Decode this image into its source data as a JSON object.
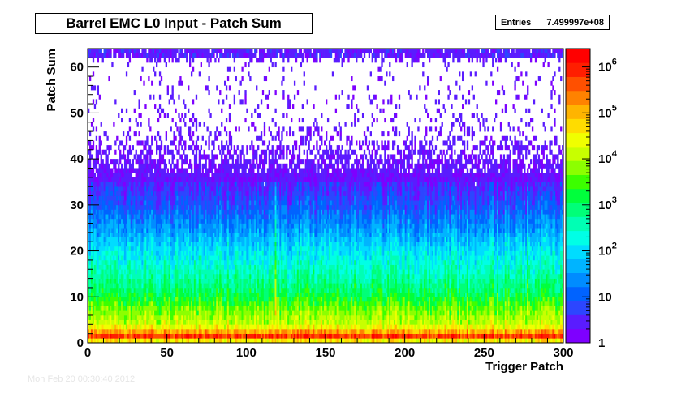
{
  "title": "Barrel EMC L0 Input - Patch Sum",
  "stats": {
    "label": "Entries",
    "value": "7.499997e+08"
  },
  "footer": "Mon Feb 20 00:30:40 2012",
  "chart_data": {
    "type": "heatmap",
    "title": "Barrel EMC L0 Input - Patch Sum",
    "xlabel": "Trigger Patch",
    "ylabel": "Patch Sum",
    "xlim": [
      0,
      300
    ],
    "ylim": [
      0,
      64
    ],
    "x_ticks": [
      0,
      50,
      100,
      150,
      200,
      250,
      300
    ],
    "y_ticks": [
      0,
      10,
      20,
      30,
      40,
      50,
      60
    ],
    "z_scale": "log",
    "zlim": [
      1,
      2500000
    ],
    "z_tick_labels": [
      "1",
      "10",
      "10^2",
      "10^3",
      "10^4",
      "10^5",
      "10^6"
    ],
    "entries": "7.499997e+08",
    "description_profile": {
      "patch_sum_bins": [
        0,
        1,
        2,
        3,
        4,
        6,
        8,
        10,
        15,
        20,
        25,
        30,
        35,
        40,
        45,
        50,
        55,
        60,
        62
      ],
      "typical_counts": [
        1000,
        1500000,
        300000,
        50000,
        15000,
        8000,
        4000,
        1500,
        400,
        120,
        30,
        8,
        3,
        1.5,
        0.6,
        0.3,
        0.2,
        0.15,
        1.2
      ]
    },
    "hot_columns": [
      118,
      277
    ],
    "palette": [
      "#7e00ff",
      "#5a1cff",
      "#2c46ff",
      "#0063ff",
      "#008cff",
      "#00b4ff",
      "#00dcff",
      "#00ffe6",
      "#00ffb4",
      "#00ff78",
      "#00ff3c",
      "#3cff00",
      "#8cff00",
      "#c8ff00",
      "#f0ff00",
      "#ffdc00",
      "#ffb400",
      "#ff8200",
      "#ff5000",
      "#ff1e00",
      "#ff0000"
    ]
  }
}
